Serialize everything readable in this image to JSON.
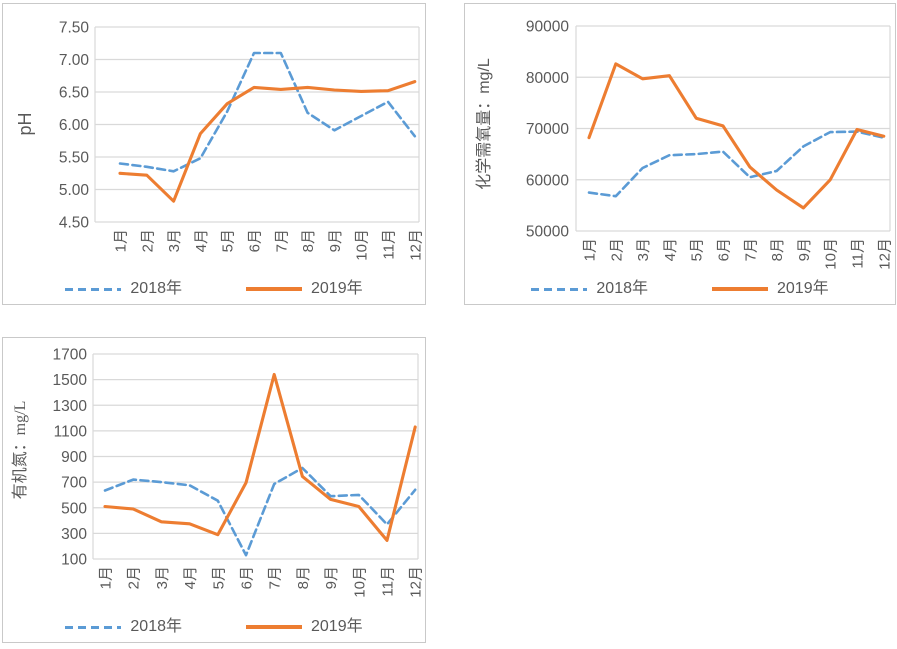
{
  "colors": {
    "series_2018": "#5B9BD5",
    "series_2019": "#ED7D31",
    "gridline": "#D9D9D9",
    "axis_text": "#595959",
    "panel_border": "#C9C9C9",
    "background": "#FFFFFF"
  },
  "legend": {
    "items": [
      {
        "label": "2018年",
        "style": "dashed",
        "color": "#5B9BD5"
      },
      {
        "label": "2019年",
        "style": "solid",
        "color": "#ED7D31"
      }
    ]
  },
  "chart_data": [
    {
      "id": "ph",
      "type": "line",
      "title": "",
      "xlabel": "",
      "ylabel": "pH",
      "grid": true,
      "legend_position": "bottom",
      "categories": [
        "1月",
        "2月",
        "3月",
        "4月",
        "5月",
        "6月",
        "7月",
        "8月",
        "9月",
        "10月",
        "11月",
        "12月"
      ],
      "ylim": [
        4.5,
        7.5
      ],
      "yticks": [
        4.5,
        5.0,
        5.5,
        6.0,
        6.5,
        7.0,
        7.5
      ],
      "ytick_labels": [
        "4.50",
        "5.00",
        "5.50",
        "6.00",
        "6.50",
        "7.00",
        "7.50"
      ],
      "series": [
        {
          "name": "2018年",
          "style": "dashed",
          "color": "#5B9BD5",
          "values": [
            5.4,
            5.35,
            5.28,
            5.48,
            6.2,
            7.1,
            7.1,
            6.18,
            5.91,
            6.13,
            6.35,
            5.82
          ]
        },
        {
          "name": "2019年",
          "style": "solid",
          "color": "#ED7D31",
          "values": [
            5.25,
            5.22,
            4.82,
            5.86,
            6.32,
            6.57,
            6.54,
            6.57,
            6.53,
            6.51,
            6.52,
            6.66
          ]
        }
      ]
    },
    {
      "id": "cod",
      "type": "line",
      "title": "",
      "xlabel": "",
      "ylabel": "化学需氧量：mg/L",
      "grid": true,
      "legend_position": "bottom",
      "categories": [
        "1月",
        "2月",
        "3月",
        "4月",
        "5月",
        "6月",
        "7月",
        "8月",
        "9月",
        "10月",
        "11月",
        "12月"
      ],
      "ylim": [
        50000,
        90000
      ],
      "yticks": [
        50000,
        60000,
        70000,
        80000,
        90000
      ],
      "ytick_labels": [
        "50000",
        "60000",
        "70000",
        "80000",
        "90000"
      ],
      "series": [
        {
          "name": "2018年",
          "style": "dashed",
          "color": "#5B9BD5",
          "values": [
            57500,
            56800,
            62300,
            64800,
            65000,
            65500,
            60500,
            61700,
            66500,
            69300,
            69400,
            68200
          ]
        },
        {
          "name": "2019年",
          "style": "solid",
          "color": "#ED7D31",
          "values": [
            68200,
            82600,
            79700,
            80300,
            72000,
            70500,
            62500,
            58000,
            54500,
            60000,
            69800,
            68500
          ]
        }
      ]
    },
    {
      "id": "on",
      "type": "line",
      "title": "",
      "xlabel": "",
      "ylabel": "有机氮：mg/L",
      "grid": true,
      "legend_position": "bottom",
      "categories": [
        "1月",
        "2月",
        "3月",
        "4月",
        "5月",
        "6月",
        "7月",
        "8月",
        "9月",
        "10月",
        "11月",
        "12月"
      ],
      "ylim": [
        100,
        1700
      ],
      "yticks": [
        100,
        300,
        500,
        700,
        900,
        1100,
        1300,
        1500,
        1700
      ],
      "ytick_labels": [
        "100",
        "300",
        "500",
        "700",
        "900",
        "1100",
        "1300",
        "1500",
        "1700"
      ],
      "series": [
        {
          "name": "2018年",
          "style": "dashed",
          "color": "#5B9BD5",
          "values": [
            635,
            720,
            700,
            675,
            555,
            130,
            685,
            810,
            590,
            600,
            370,
            640
          ]
        },
        {
          "name": "2019年",
          "style": "solid",
          "color": "#ED7D31",
          "values": [
            510,
            490,
            390,
            375,
            290,
            695,
            1540,
            745,
            565,
            510,
            245,
            1130
          ]
        }
      ]
    }
  ]
}
